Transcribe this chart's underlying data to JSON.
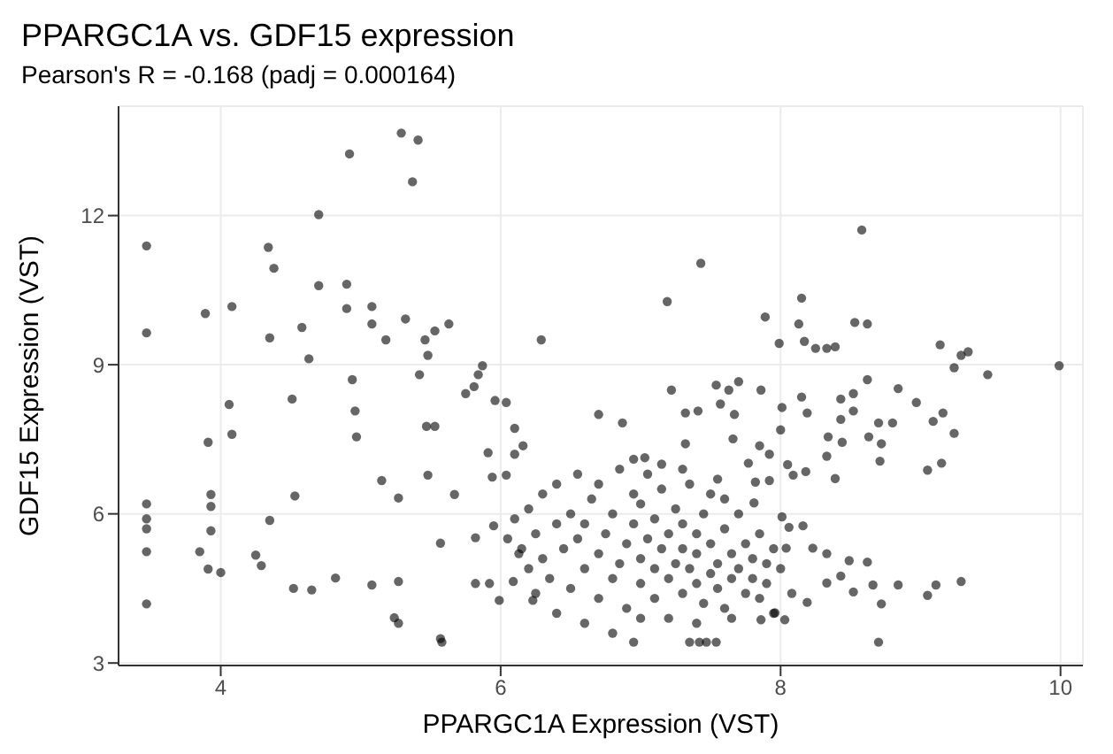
{
  "chart_data": {
    "type": "scatter",
    "title": "PPARGC1A vs. GDF15 expression",
    "subtitle": "Pearson's R = -0.168 (padj = 0.000164)",
    "xlabel": "PPARGC1A Expression (VST)",
    "ylabel": "GDF15 Expression (VST)",
    "xlim": [
      3.27,
      10.16
    ],
    "ylim": [
      2.95,
      14.2
    ],
    "xticks": [
      4,
      6,
      8,
      10
    ],
    "yticks": [
      3,
      6,
      9,
      12
    ],
    "grid": true,
    "marker": "circle",
    "series": [
      {
        "color": "#000000",
        "x": [
          3.47,
          3.47,
          3.47,
          3.47,
          3.47,
          3.47,
          3.47,
          3.89,
          4.08,
          3.91,
          4.06,
          4.08,
          3.93,
          3.93,
          3.93,
          3.85,
          3.91,
          4.0,
          4.25,
          4.29,
          4.53,
          4.35,
          4.34,
          4.38,
          4.35,
          4.7,
          4.7,
          4.9,
          4.9,
          4.58,
          4.63,
          4.51,
          4.52,
          4.65,
          4.92,
          5.29,
          5.41,
          5.37,
          5.08,
          5.08,
          4.94,
          4.96,
          4.97,
          5.18,
          5.32,
          5.46,
          5.48,
          5.63,
          5.75,
          5.84,
          5.96,
          6.1,
          6.16,
          6.04,
          5.47,
          5.53,
          5.48,
          5.15,
          5.27,
          5.67,
          5.57,
          5.24,
          5.57,
          5.27,
          5.08,
          4.82,
          5.42,
          5.53,
          5.82,
          5.95,
          6.13,
          6.09,
          5.92,
          6.23,
          6.29,
          5.87,
          5.81,
          6.1,
          5.91,
          5.94,
          5.82,
          5.99,
          5.58,
          5.27,
          6.04,
          8.58,
          7.43,
          7.19,
          7.89,
          8.15,
          8.13,
          7.99,
          8.17,
          8.25,
          8.33,
          8.39,
          8.53,
          8.62,
          9.14,
          9.24,
          9.29,
          9.34,
          9.48,
          9.99,
          8.62,
          8.84,
          8.97,
          8.52,
          8.43,
          8.52,
          8.43,
          8.7,
          8.8,
          9.09,
          9.16,
          9.24,
          8.63,
          8.72,
          8.71,
          9.05,
          9.15,
          8.34,
          8.44,
          8.33,
          8.39,
          8.15,
          8.19,
          8.01,
          8.0,
          7.86,
          7.7,
          7.54,
          7.63,
          7.57,
          7.67,
          7.41,
          7.32,
          7.22,
          6.7,
          6.87,
          7.32,
          7.66,
          7.85,
          7.92,
          7.77,
          8.05,
          8.18,
          8.09,
          7.82,
          7.92,
          7.81,
          7.03,
          8.01,
          8.06,
          8.16,
          8.04,
          8.23,
          8.33,
          8.49,
          8.62,
          8.43,
          8.33,
          8.66,
          8.84,
          9.11,
          9.29,
          9.05,
          8.52,
          8.72,
          8.7,
          8.19,
          8.03,
          7.96,
          7.86,
          8.08,
          6.95,
          7.35,
          7.42,
          7.47,
          7.54,
          6.05,
          6.1,
          6.15,
          6.2,
          6.2,
          6.25,
          6.3,
          6.3,
          6.35,
          6.4,
          6.4,
          6.45,
          6.5,
          6.5,
          6.55,
          6.55,
          6.6,
          6.6,
          6.65,
          6.7,
          6.7,
          6.7,
          6.75,
          6.8,
          6.8,
          6.85,
          6.85,
          6.9,
          6.9,
          6.95,
          6.95,
          7.0,
          7.0,
          7.0,
          7.05,
          7.05,
          7.1,
          7.1,
          7.1,
          7.15,
          7.15,
          7.2,
          7.2,
          7.2,
          7.25,
          7.25,
          7.3,
          7.3,
          7.3,
          7.35,
          7.35,
          7.4,
          7.4,
          7.4,
          7.45,
          7.45,
          7.5,
          7.5,
          7.5,
          7.55,
          7.55,
          7.6,
          7.6,
          7.65,
          7.65,
          7.7,
          7.7,
          7.75,
          7.75,
          7.8,
          7.8,
          7.85,
          7.85,
          7.9,
          7.9,
          7.95,
          7.6,
          7.3,
          6.6,
          6.8,
          7.0,
          7.4,
          7.65,
          6.25,
          6.4,
          7.15,
          6.95,
          7.55,
          8.0,
          7.95
        ],
        "values": [
          11.39,
          9.64,
          6.2,
          5.9,
          5.7,
          5.24,
          4.19,
          10.03,
          10.17,
          7.44,
          8.2,
          7.6,
          6.39,
          6.15,
          5.66,
          5.24,
          4.89,
          4.82,
          5.17,
          4.96,
          6.36,
          5.87,
          11.36,
          10.94,
          9.54,
          12.02,
          10.59,
          10.62,
          10.13,
          9.75,
          9.12,
          8.31,
          4.5,
          4.47,
          13.24,
          13.66,
          13.52,
          12.68,
          10.17,
          9.82,
          8.7,
          8.07,
          7.55,
          9.5,
          9.92,
          9.5,
          9.19,
          9.82,
          8.42,
          8.8,
          8.28,
          7.2,
          7.37,
          6.78,
          7.76,
          7.76,
          6.78,
          6.67,
          6.32,
          6.39,
          5.41,
          3.91,
          3.49,
          4.64,
          4.57,
          4.71,
          8.8,
          9.68,
          5.52,
          5.76,
          5.2,
          4.64,
          4.6,
          4.26,
          9.5,
          8.98,
          8.56,
          7.72,
          7.23,
          6.74,
          4.6,
          4.26,
          3.42,
          3.8,
          8.24,
          11.71,
          11.04,
          10.27,
          9.96,
          10.34,
          9.82,
          9.43,
          9.47,
          9.33,
          9.33,
          9.36,
          9.85,
          9.82,
          9.4,
          8.94,
          9.19,
          9.26,
          8.8,
          8.98,
          8.7,
          8.52,
          8.24,
          8.42,
          8.31,
          8.07,
          7.9,
          7.83,
          7.83,
          7.86,
          8.03,
          7.62,
          7.55,
          7.41,
          7.06,
          6.88,
          7.02,
          7.55,
          7.44,
          7.16,
          6.71,
          8.35,
          8.03,
          8.14,
          7.69,
          8.49,
          8.66,
          8.59,
          8.49,
          8.21,
          8.0,
          8.07,
          8.03,
          8.49,
          8.0,
          7.83,
          7.41,
          7.51,
          7.37,
          7.2,
          7.02,
          6.99,
          6.85,
          6.78,
          6.64,
          6.67,
          6.22,
          7.13,
          5.94,
          5.73,
          5.76,
          5.31,
          5.31,
          5.2,
          5.06,
          5.03,
          4.75,
          4.61,
          4.57,
          4.57,
          4.57,
          4.64,
          4.36,
          4.43,
          4.19,
          3.42,
          4.22,
          3.87,
          4.01,
          3.87,
          4.4,
          3.42,
          3.42,
          3.42,
          3.42,
          3.42,
          5.5,
          5.9,
          5.3,
          6.1,
          4.9,
          5.6,
          6.4,
          5.1,
          4.7,
          5.8,
          6.6,
          5.3,
          4.5,
          6.0,
          5.5,
          6.8,
          4.9,
          5.8,
          6.3,
          4.3,
          5.2,
          6.6,
          5.6,
          4.7,
          6.0,
          5.0,
          6.9,
          5.4,
          4.1,
          5.8,
          6.4,
          4.6,
          5.1,
          6.2,
          5.5,
          6.8,
          4.3,
          4.9,
          5.9,
          5.3,
          6.5,
          4.7,
          5.6,
          3.9,
          5.0,
          6.1,
          4.4,
          5.3,
          5.8,
          4.9,
          6.6,
          4.6,
          5.2,
          5.6,
          4.2,
          6.0,
          4.8,
          5.4,
          6.4,
          5.0,
          4.5,
          5.7,
          4.1,
          5.2,
          4.7,
          6.0,
          4.9,
          5.4,
          4.4,
          5.1,
          4.7,
          5.6,
          4.3,
          5.0,
          4.6,
          5.3,
          6.3,
          6.9,
          3.8,
          3.6,
          3.9,
          3.8,
          3.9,
          4.4,
          4.0,
          7.0,
          7.1,
          6.7,
          4.9,
          4.0
        ]
      }
    ]
  }
}
